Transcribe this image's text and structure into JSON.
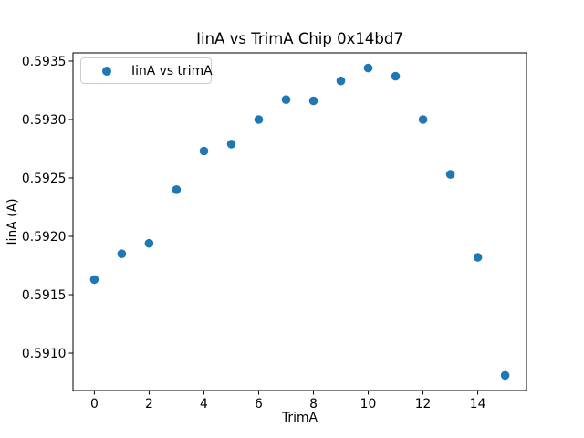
{
  "figure": {
    "background": "#ffffff",
    "axes_edge_color": "#000000"
  },
  "chart_data": {
    "type": "scatter",
    "title": "IinA vs TrimA Chip 0x14bd7",
    "xlabel": "TrimA",
    "ylabel": "IinA (A)",
    "legend": {
      "label": "IinA vs trimA",
      "position": "upper left",
      "marker": "circle-icon"
    },
    "marker_color": "#1f77b4",
    "grid": false,
    "x": [
      0,
      1,
      2,
      3,
      4,
      5,
      6,
      7,
      8,
      9,
      10,
      11,
      12,
      13,
      14,
      15
    ],
    "y": [
      0.59163,
      0.59185,
      0.59194,
      0.5924,
      0.59273,
      0.59279,
      0.593,
      0.59317,
      0.59316,
      0.59333,
      0.59344,
      0.59337,
      0.593,
      0.59253,
      0.59182,
      0.59081
    ],
    "xlim": [
      -0.78,
      15.78
    ],
    "ylim": [
      0.59068,
      0.59357
    ],
    "xticks": [
      0,
      2,
      4,
      6,
      8,
      10,
      12,
      14
    ],
    "yticks": [
      0.591,
      0.5915,
      0.592,
      0.5925,
      0.593,
      0.5935
    ],
    "ytick_decimals": 4
  }
}
